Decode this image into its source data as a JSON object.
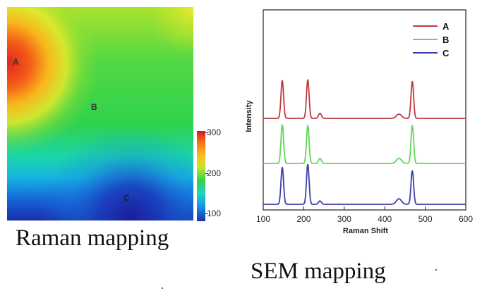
{
  "chart_data": [
    {
      "type": "heatmap",
      "title": "Raman mapping",
      "colorbar": {
        "ticks": [
          "300",
          "200",
          "100"
        ],
        "tick_values": [
          300,
          200,
          100
        ],
        "range": [
          80,
          310
        ],
        "colors": [
          "#d7191c",
          "#f9c31c",
          "#2fd24d",
          "#1ad6c3",
          "#1a2eaa"
        ]
      },
      "points": [
        {
          "label": "A",
          "approx_value": 300
        },
        {
          "label": "B",
          "approx_value": 200
        },
        {
          "label": "C",
          "approx_value": 100
        }
      ]
    },
    {
      "type": "line",
      "title": "SEM mapping",
      "xlabel": "Raman Shift",
      "ylabel": "Intensity",
      "xlim": [
        100,
        600
      ],
      "xticks": [
        "100",
        "200",
        "300",
        "400",
        "500",
        "600"
      ],
      "xtick_values": [
        100,
        200,
        300,
        400,
        500,
        600
      ],
      "peaks": [
        147,
        210,
        240,
        435,
        468
      ],
      "series": [
        {
          "name": "A",
          "color": "#c0393f",
          "offset": 2,
          "peak_heights": [
            0.9,
            0.92,
            0.12,
            0.1,
            0.88
          ]
        },
        {
          "name": "B",
          "color": "#5ed85a",
          "offset": 1,
          "peak_heights": [
            0.92,
            0.9,
            0.12,
            0.12,
            0.9
          ]
        },
        {
          "name": "C",
          "color": "#3d3fa6",
          "offset": 0,
          "peak_heights": [
            0.88,
            0.95,
            0.08,
            0.13,
            0.8
          ]
        }
      ]
    }
  ]
}
